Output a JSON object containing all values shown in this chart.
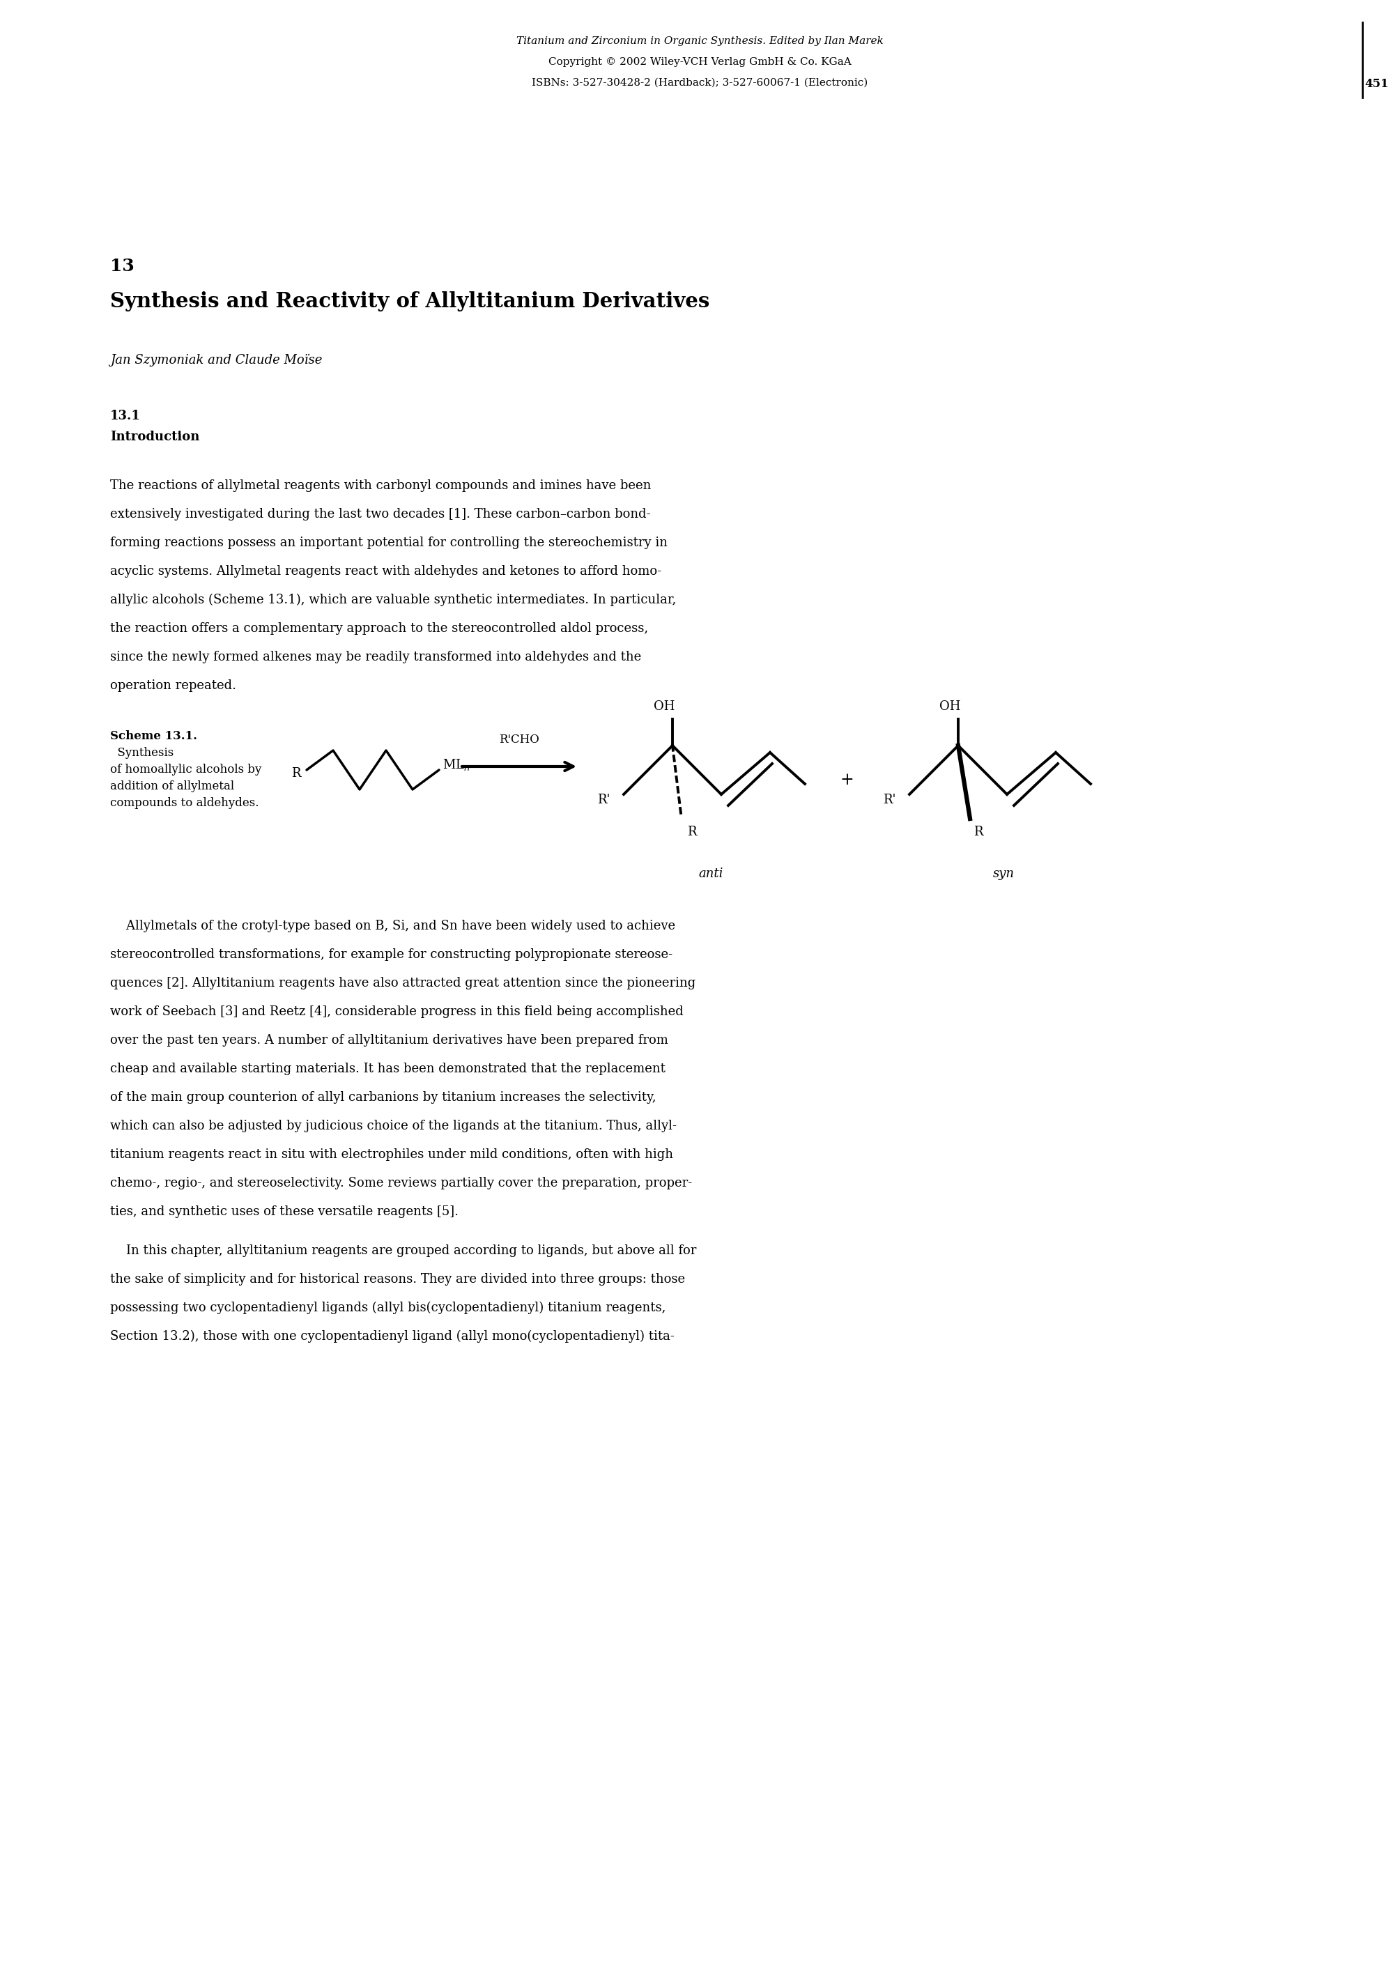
{
  "header_line1_italic": "Titanium and Zirconium in Organic Synthesis.",
  "header_line1_normal": " Edited by Ilan Marek",
  "header_line2": "Copyright © 2002 Wiley-VCH Verlag GmbH & Co. KGaA",
  "header_line3": "ISBNs: 3-527-30428-2 (Hardback); 3-527-60067-1 (Electronic)",
  "page_number": "451",
  "chapter_number": "13",
  "chapter_title": "Synthesis and Reactivity of Allyltitanium Derivatives",
  "authors": "Jan Szymoniak and Claude Moïse",
  "section_number": "13.1",
  "section_title": "Introduction",
  "para1_lines": [
    "The reactions of allylmetal reagents with carbonyl compounds and imines have been",
    "extensively investigated during the last two decades [1]. These carbon–carbon bond-",
    "forming reactions possess an important potential for controlling the stereochemistry in",
    "acyclic systems. Allylmetal reagents react with aldehydes and ketones to afford homo-",
    "allylic alcohols (Scheme 13.1), which are valuable synthetic intermediates. In particular,",
    "the reaction offers a complementary approach to the stereocontrolled aldol process,",
    "since the newly formed alkenes may be readily transformed into aldehydes and the",
    "operation repeated."
  ],
  "para2_lines": [
    "    Allylmetals of the crotyl-type based on B, Si, and Sn have been widely used to achieve",
    "stereocontrolled transformations, for example for constructing polypropionate stereose-",
    "quences [2]. Allyltitanium reagents have also attracted great attention since the pioneering",
    "work of Seebach [3] and Reetz [4], considerable progress in this field being accomplished",
    "over the past ten years. A number of allyltitanium derivatives have been prepared from",
    "cheap and available starting materials. It has been demonstrated that the replacement",
    "of the main group counterion of allyl carbanions by titanium increases the selectivity,",
    "which can also be adjusted by judicious choice of the ligands at the titanium. Thus, allyl-",
    "titanium reagents react in situ with electrophiles under mild conditions, often with high",
    "chemo-, regio-, and stereoselectivity. Some reviews partially cover the preparation, proper-",
    "ties, and synthetic uses of these versatile reagents [5]."
  ],
  "para3_lines": [
    "    In this chapter, allyltitanium reagents are grouped according to ligands, but above all for",
    "the sake of simplicity and for historical reasons. They are divided into three groups: those",
    "possessing two cyclopentadienyl ligands (allyl bis(cyclopentadienyl) titanium reagents,",
    "Section 13.2), those with one cyclopentadienyl ligand (allyl mono(cyclopentadienyl) tita-"
  ],
  "bg_color": "#ffffff",
  "text_color": "#000000"
}
